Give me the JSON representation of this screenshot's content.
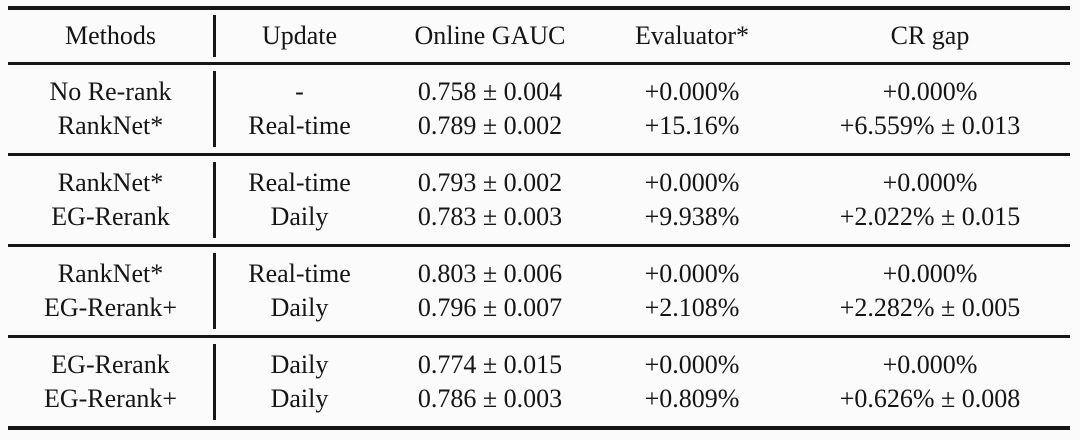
{
  "page": {
    "background_color": "#fbfbfb",
    "text_color": "#151515",
    "rule_color": "#161616"
  },
  "table": {
    "columns": [
      "Methods",
      "Update",
      "Online GAUC",
      "Evaluator*",
      "CR gap"
    ],
    "groups": [
      {
        "rows": [
          {
            "method": "No Re-rank",
            "update": "-",
            "online_gauc": "0.758 ± 0.004",
            "evaluator": "+0.000%",
            "cr_gap": "+0.000%"
          },
          {
            "method": "RankNet*",
            "update": "Real-time",
            "online_gauc": "0.789 ± 0.002",
            "evaluator": "+15.16%",
            "cr_gap": "+6.559% ± 0.013"
          }
        ]
      },
      {
        "rows": [
          {
            "method": "RankNet*",
            "update": "Real-time",
            "online_gauc": "0.793 ± 0.002",
            "evaluator": "+0.000%",
            "cr_gap": "+0.000%"
          },
          {
            "method": "EG-Rerank",
            "update": "Daily",
            "online_gauc": "0.783 ± 0.003",
            "evaluator": "+9.938%",
            "cr_gap": "+2.022% ± 0.015"
          }
        ]
      },
      {
        "rows": [
          {
            "method": "RankNet*",
            "update": "Real-time",
            "online_gauc": "0.803 ± 0.006",
            "evaluator": "+0.000%",
            "cr_gap": "+0.000%"
          },
          {
            "method": "EG-Rerank+",
            "update": "Daily",
            "online_gauc": "0.796 ± 0.007",
            "evaluator": "+2.108%",
            "cr_gap": "+2.282% ± 0.005"
          }
        ]
      },
      {
        "rows": [
          {
            "method": "EG-Rerank",
            "update": "Daily",
            "online_gauc": "0.774 ± 0.015",
            "evaluator": "+0.000%",
            "cr_gap": "+0.000%"
          },
          {
            "method": "EG-Rerank+",
            "update": "Daily",
            "online_gauc": "0.786 ± 0.003",
            "evaluator": "+0.809%",
            "cr_gap": "+0.626% ± 0.008"
          }
        ]
      }
    ]
  }
}
